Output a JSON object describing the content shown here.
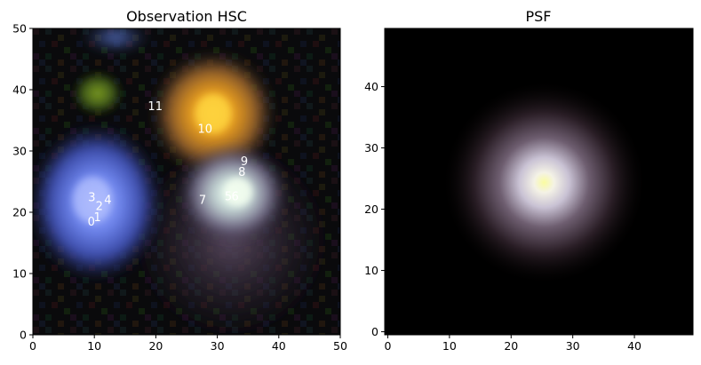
{
  "panels": [
    {
      "title": "Observation HSC",
      "xlim": [
        0,
        50
      ],
      "ylim": [
        0,
        50
      ],
      "xticks": [
        "0",
        "10",
        "20",
        "30",
        "40",
        "50"
      ],
      "yticks": [
        "0",
        "10",
        "20",
        "30",
        "40",
        "50"
      ],
      "sources": [
        {
          "label": "0",
          "x": 9.5,
          "y": 18.5
        },
        {
          "label": "1",
          "x": 10.5,
          "y": 19.2
        },
        {
          "label": "2",
          "x": 10.8,
          "y": 21.0
        },
        {
          "label": "3",
          "x": 9.6,
          "y": 22.5
        },
        {
          "label": "4",
          "x": 12.2,
          "y": 22.0
        },
        {
          "label": "5",
          "x": 31.8,
          "y": 22.6
        },
        {
          "label": "6",
          "x": 32.9,
          "y": 22.6
        },
        {
          "label": "7",
          "x": 27.6,
          "y": 22.0
        },
        {
          "label": "8",
          "x": 34.0,
          "y": 26.6
        },
        {
          "label": "9",
          "x": 34.4,
          "y": 28.3
        },
        {
          "label": "10",
          "x": 28.0,
          "y": 33.6
        },
        {
          "label": "11",
          "x": 19.9,
          "y": 37.3
        }
      ]
    },
    {
      "title": "PSF",
      "xlim": [
        -0.5,
        49.5
      ],
      "ylim": [
        -0.5,
        49.5
      ],
      "xticks": [
        "0",
        "10",
        "20",
        "30",
        "40"
      ],
      "yticks": [
        "0",
        "10",
        "20",
        "30",
        "40"
      ]
    }
  ]
}
